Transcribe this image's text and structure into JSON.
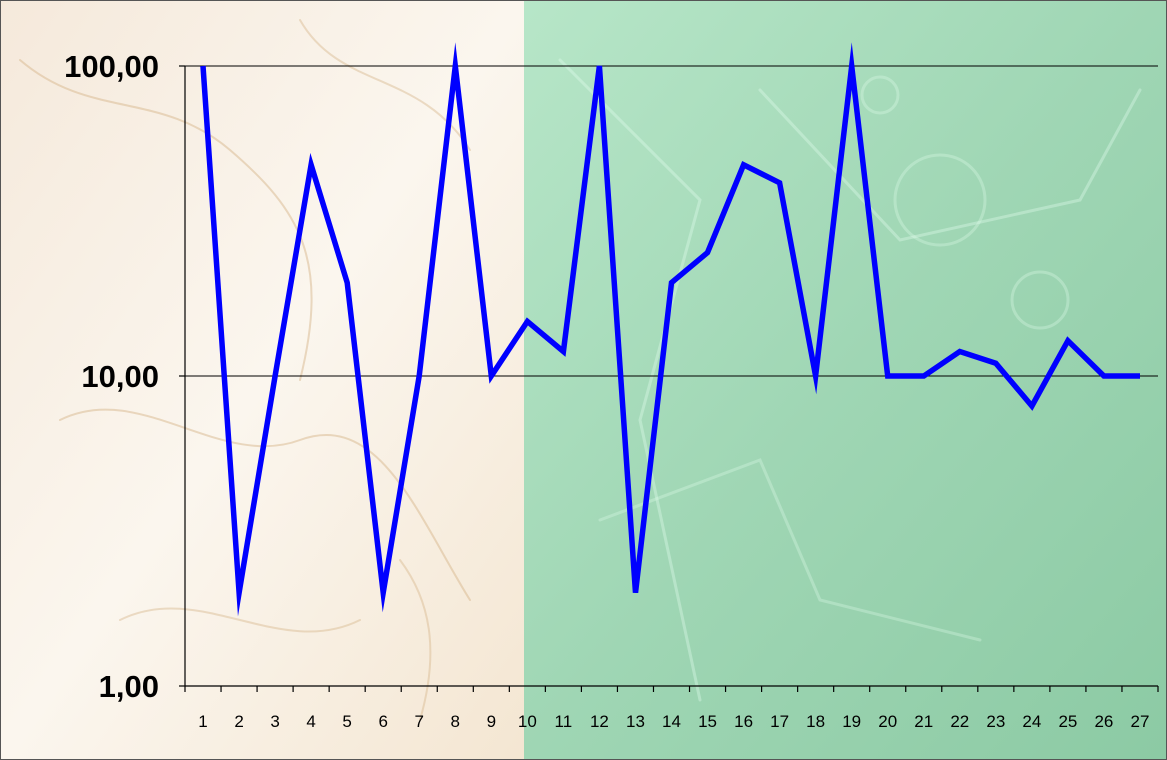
{
  "chart_data": {
    "type": "line",
    "y_scale": "log",
    "ylim": [
      1,
      100
    ],
    "grid": "horizontal major gridlines",
    "y_ticks": [
      {
        "value": 1,
        "label": "1,00"
      },
      {
        "value": 10,
        "label": "10,00"
      },
      {
        "value": 100,
        "label": "100,00"
      }
    ],
    "x_tick_labels": [
      "1",
      "2",
      "3",
      "4",
      "5",
      "6",
      "7",
      "8",
      "9",
      "10",
      "11",
      "12",
      "13",
      "14",
      "15",
      "16",
      "17",
      "18",
      "19",
      "20",
      "21",
      "22",
      "23",
      "24",
      "25",
      "26",
      "27"
    ],
    "series": [
      {
        "color": "#0000ff",
        "x": [
          1,
          2,
          3,
          4,
          5,
          6,
          7,
          8,
          9,
          10,
          11,
          12,
          13,
          14,
          15,
          16,
          17,
          18,
          19,
          20,
          21,
          22,
          23,
          24,
          25,
          26,
          27
        ],
        "values": [
          100,
          2,
          10,
          48,
          20,
          2,
          10,
          100,
          10,
          15,
          12,
          100,
          2,
          20,
          25,
          48,
          42,
          10,
          100,
          10,
          10,
          12,
          11,
          8,
          13,
          10,
          10
        ]
      }
    ],
    "colors": {
      "line": "#0000ff",
      "frame": "#000000",
      "gridline": "#000000",
      "background_left": "#f8efe4",
      "background_right": "#a8dcbc"
    }
  }
}
